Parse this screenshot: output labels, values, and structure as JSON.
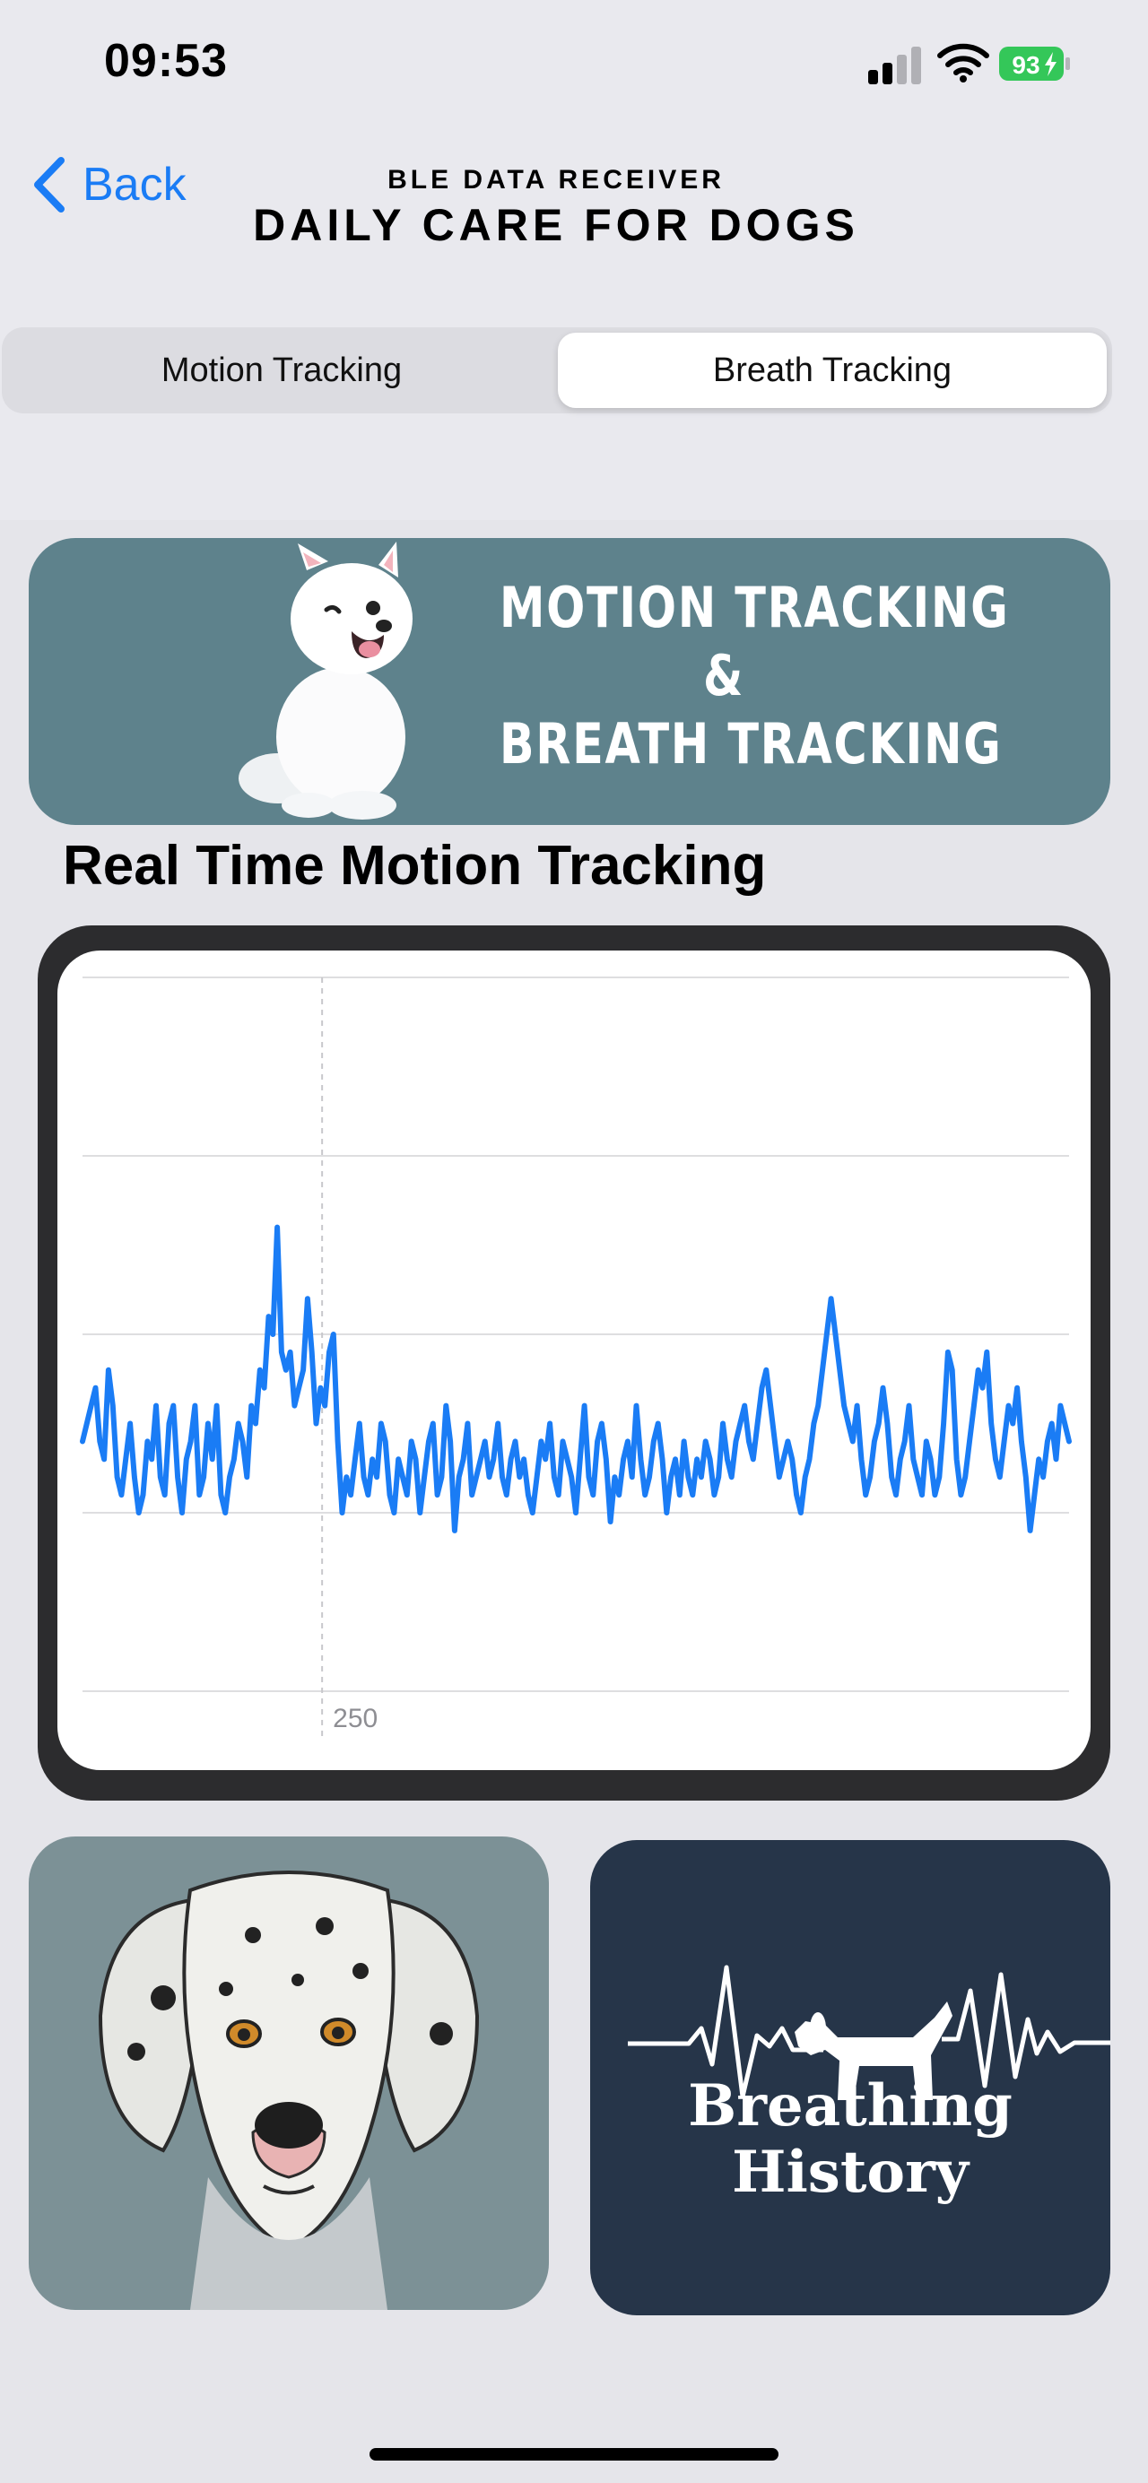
{
  "status_bar": {
    "time": "09:53",
    "battery": "93"
  },
  "nav": {
    "back_label": "Back",
    "subtitle": "BLE DATA RECEIVER",
    "title": "DAILY CARE FOR DOGS"
  },
  "segments": {
    "items": [
      "Motion Tracking",
      "Breath Tracking"
    ],
    "selected": "Breath Tracking"
  },
  "banner": {
    "line1": "MOTION TRACKING",
    "line2": "&",
    "line3": "BREATH TRACKING"
  },
  "section_title": "Real Time Motion Tracking",
  "chart_data": {
    "type": "line",
    "x_tick_labels": [
      {
        "x": 250,
        "label": "250"
      }
    ],
    "xlim": [
      165,
      515
    ],
    "ylim": [
      0,
      4
    ],
    "grid": true,
    "series": [
      {
        "color": "#1a7cf5",
        "values": [
          1.4,
          1.5,
          1.6,
          1.7,
          1.4,
          1.3,
          1.8,
          1.6,
          1.2,
          1.1,
          1.3,
          1.5,
          1.2,
          1.0,
          1.1,
          1.4,
          1.3,
          1.6,
          1.2,
          1.1,
          1.5,
          1.6,
          1.2,
          1.0,
          1.3,
          1.4,
          1.6,
          1.1,
          1.2,
          1.5,
          1.3,
          1.6,
          1.1,
          1.0,
          1.2,
          1.3,
          1.5,
          1.4,
          1.2,
          1.6,
          1.5,
          1.8,
          1.7,
          2.1,
          2.0,
          2.6,
          1.9,
          1.8,
          1.9,
          1.6,
          1.7,
          1.8,
          2.2,
          1.9,
          1.5,
          1.7,
          1.6,
          1.9,
          2.0,
          1.4,
          1.0,
          1.2,
          1.1,
          1.3,
          1.5,
          1.2,
          1.1,
          1.3,
          1.2,
          1.5,
          1.4,
          1.1,
          1.0,
          1.3,
          1.2,
          1.1,
          1.4,
          1.3,
          1.0,
          1.2,
          1.4,
          1.5,
          1.1,
          1.2,
          1.6,
          1.4,
          0.9,
          1.2,
          1.3,
          1.5,
          1.1,
          1.2,
          1.3,
          1.4,
          1.2,
          1.3,
          1.5,
          1.2,
          1.1,
          1.3,
          1.4,
          1.2,
          1.3,
          1.1,
          1.0,
          1.2,
          1.4,
          1.3,
          1.5,
          1.2,
          1.1,
          1.4,
          1.3,
          1.2,
          1.0,
          1.3,
          1.6,
          1.2,
          1.1,
          1.4,
          1.5,
          1.3,
          0.95,
          1.2,
          1.1,
          1.3,
          1.4,
          1.2,
          1.6,
          1.3,
          1.1,
          1.2,
          1.4,
          1.5,
          1.3,
          1.0,
          1.2,
          1.3,
          1.1,
          1.4,
          1.2,
          1.1,
          1.3,
          1.2,
          1.4,
          1.3,
          1.1,
          1.2,
          1.5,
          1.3,
          1.2,
          1.4,
          1.5,
          1.6,
          1.4,
          1.3,
          1.5,
          1.7,
          1.8,
          1.6,
          1.4,
          1.2,
          1.3,
          1.4,
          1.3,
          1.1,
          1.0,
          1.2,
          1.3,
          1.5,
          1.6,
          1.8,
          2.0,
          2.2,
          2.0,
          1.8,
          1.6,
          1.5,
          1.4,
          1.6,
          1.3,
          1.1,
          1.2,
          1.4,
          1.5,
          1.7,
          1.5,
          1.2,
          1.1,
          1.3,
          1.4,
          1.6,
          1.3,
          1.2,
          1.1,
          1.4,
          1.3,
          1.1,
          1.2,
          1.5,
          1.9,
          1.8,
          1.3,
          1.1,
          1.2,
          1.4,
          1.6,
          1.8,
          1.7,
          1.9,
          1.5,
          1.3,
          1.2,
          1.4,
          1.6,
          1.5,
          1.7,
          1.4,
          1.2,
          0.9,
          1.1,
          1.3,
          1.2,
          1.4,
          1.5,
          1.3,
          1.6,
          1.5,
          1.4
        ]
      }
    ]
  }
}
